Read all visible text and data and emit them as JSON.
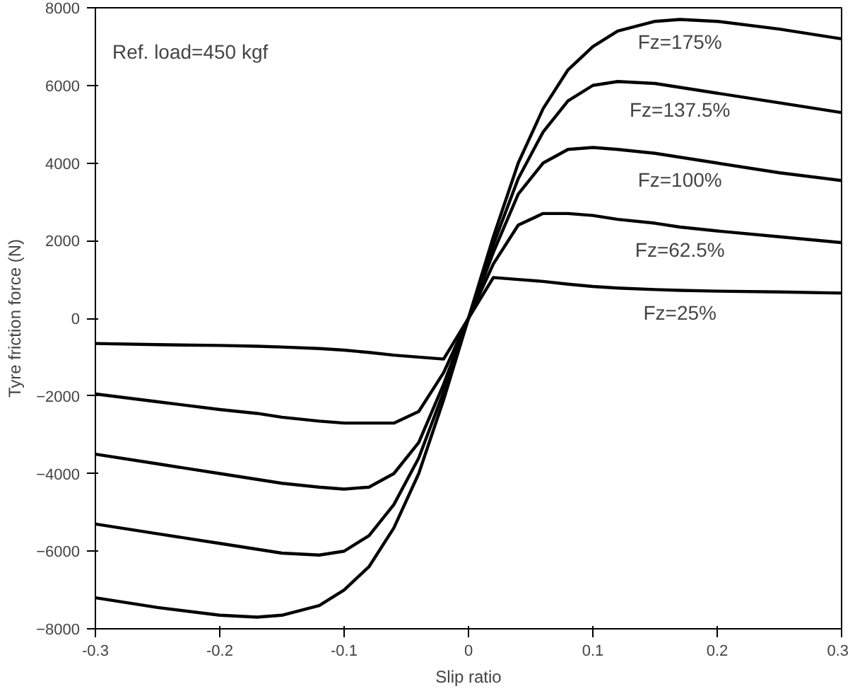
{
  "chart_data": {
    "type": "line",
    "xlabel": "Slip ratio",
    "ylabel": "Tyre friction force (N)",
    "annotations": [
      "Ref. load=450 kgf"
    ],
    "x": [
      -0.3,
      -0.25,
      -0.2,
      -0.17,
      -0.15,
      -0.12,
      -0.1,
      -0.08,
      -0.06,
      -0.04,
      -0.02,
      0,
      0.02,
      0.04,
      0.06,
      0.08,
      0.1,
      0.12,
      0.15,
      0.17,
      0.2,
      0.25,
      0.3
    ],
    "series": [
      {
        "name": "Fz=175%",
        "color": "#000000",
        "values": [
          -7200,
          -7450,
          -7650,
          -7700,
          -7650,
          -7400,
          -7000,
          -6400,
          -5400,
          -4000,
          -2100,
          0,
          2100,
          4000,
          5400,
          6400,
          7000,
          7400,
          7650,
          7700,
          7650,
          7450,
          7200
        ]
      },
      {
        "name": "Fz=137.5%",
        "color": "#000000",
        "values": [
          -5300,
          -5550,
          -5800,
          -5950,
          -6050,
          -6100,
          -6000,
          -5600,
          -4800,
          -3600,
          -1900,
          0,
          1900,
          3600,
          4800,
          5600,
          6000,
          6100,
          6050,
          5950,
          5800,
          5550,
          5300
        ]
      },
      {
        "name": "Fz=100%",
        "color": "#000000",
        "values": [
          -3500,
          -3750,
          -4000,
          -4150,
          -4250,
          -4350,
          -4400,
          -4350,
          -4000,
          -3200,
          -1700,
          0,
          1700,
          3200,
          4000,
          4350,
          4400,
          4350,
          4250,
          4150,
          4000,
          3750,
          3550
        ]
      },
      {
        "name": "Fz=62.5%",
        "color": "#000000",
        "values": [
          -1950,
          -2150,
          -2350,
          -2450,
          -2550,
          -2650,
          -2700,
          -2700,
          -2700,
          -2400,
          -1400,
          0,
          1400,
          2400,
          2700,
          2700,
          2650,
          2550,
          2450,
          2350,
          2250,
          2100,
          1950
        ]
      },
      {
        "name": "Fz=25%",
        "color": "#000000",
        "values": [
          -650,
          -680,
          -700,
          -720,
          -740,
          -780,
          -820,
          -880,
          -950,
          -1000,
          -1050,
          0,
          1050,
          1000,
          950,
          880,
          820,
          780,
          740,
          720,
          700,
          680,
          650
        ]
      }
    ],
    "xlim": [
      -0.3,
      0.3
    ],
    "xticks": [
      -0.3,
      -0.2,
      -0.1,
      0,
      0.1,
      0.2,
      0.3
    ],
    "ylim": [
      -8000,
      8000
    ],
    "yticks": [
      -8000,
      -6000,
      -4000,
      -2000,
      0,
      2000,
      4000,
      6000,
      8000
    ],
    "grid": false,
    "legend": false,
    "marker": "none",
    "line_style": "solid"
  }
}
